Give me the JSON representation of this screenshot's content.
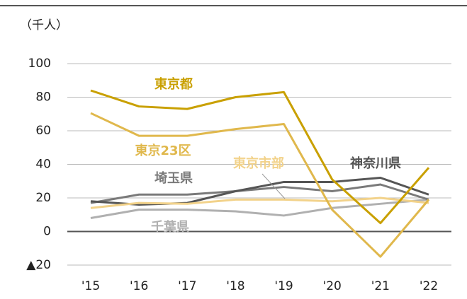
{
  "chart_data": {
    "type": "line",
    "unit_label": "（千人）",
    "categories": [
      "'15",
      "'16",
      "'17",
      "'18",
      "'19",
      "'20",
      "'21",
      "'22"
    ],
    "series": [
      {
        "name": "東京都",
        "color": "#c9a000",
        "values": [
          84,
          74.5,
          73,
          80,
          83,
          31,
          5,
          38
        ]
      },
      {
        "name": "東京23区",
        "color": "#e0b84c",
        "values": [
          70.5,
          57,
          57,
          61,
          64,
          13,
          -15,
          19
        ]
      },
      {
        "name": "東京市部",
        "color": "#f2d28a",
        "values": [
          14,
          17,
          16.5,
          19,
          19,
          18,
          20,
          17
        ]
      },
      {
        "name": "神奈川県",
        "color": "#555555",
        "values": [
          18,
          16,
          17,
          24,
          29.5,
          29.5,
          32,
          22
        ]
      },
      {
        "name": "埼玉県",
        "color": "#7a7a7a",
        "values": [
          17,
          22,
          22,
          24,
          26.5,
          24,
          28,
          19
        ]
      },
      {
        "name": "千葉県",
        "color": "#b0b0b0",
        "values": [
          8,
          13,
          13,
          12,
          9.5,
          14,
          16.5,
          19
        ]
      }
    ],
    "ylim": [
      -20,
      100
    ],
    "yticks": [
      {
        "value": -20,
        "label": "▲20"
      },
      0,
      20,
      40,
      60,
      80,
      100
    ],
    "grid": true
  }
}
